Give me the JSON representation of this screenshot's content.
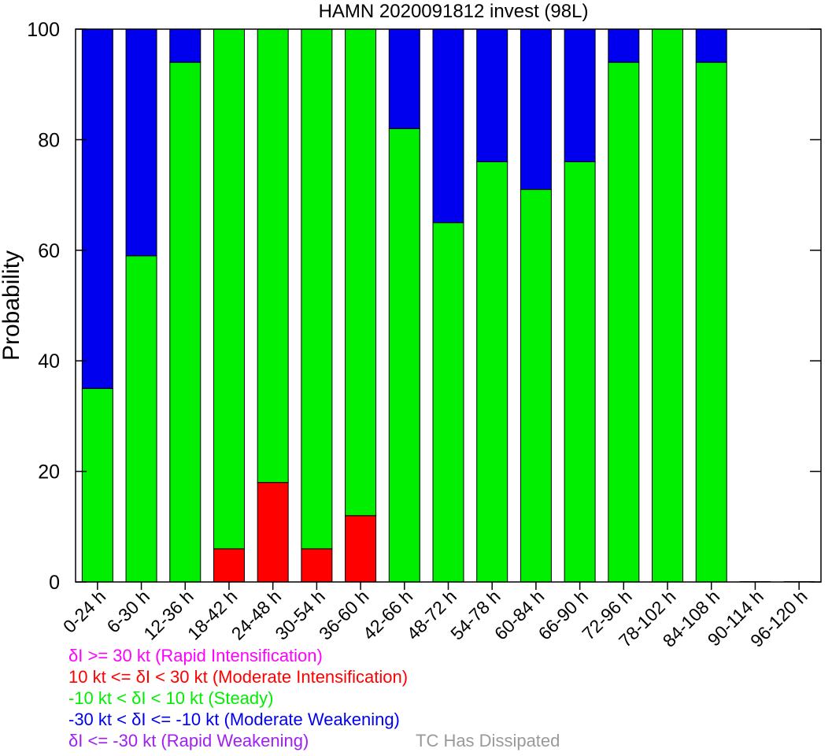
{
  "chart_data": {
    "type": "bar",
    "stacked": true,
    "title": "HAMN 2020091812 invest (98L)",
    "xlabel": "",
    "ylabel": "Probability",
    "ylim": [
      0,
      100
    ],
    "yticks": [
      "0",
      "20",
      "40",
      "60",
      "80",
      "100"
    ],
    "grid": false,
    "categories": [
      "0-24 h",
      "6-30 h",
      "12-36 h",
      "18-42 h",
      "24-48 h",
      "30-54 h",
      "36-60 h",
      "42-66 h",
      "48-72 h",
      "54-78 h",
      "60-84 h",
      "66-90 h",
      "72-96 h",
      "78-102 h",
      "84-108 h",
      "90-114 h",
      "96-120 h"
    ],
    "series": [
      {
        "name": "δI <= -30 kt (Rapid Weakening)",
        "color": "#a020f0",
        "values": [
          0,
          0,
          0,
          0,
          0,
          0,
          0,
          0,
          0,
          0,
          0,
          0,
          0,
          0,
          0,
          0,
          0
        ]
      },
      {
        "name": "10 kt <= δI < 30 kt (Moderate Intensification)",
        "color": "#ff0000",
        "values": [
          0,
          0,
          0,
          6,
          18,
          6,
          12,
          0,
          0,
          0,
          0,
          0,
          0,
          0,
          0,
          0,
          0
        ]
      },
      {
        "name": "-10 kt < δI < 10 kt (Steady)",
        "color": "#00ee00",
        "values": [
          35,
          59,
          94,
          94,
          82,
          94,
          88,
          82,
          65,
          76,
          71,
          76,
          94,
          100,
          94,
          0,
          0
        ]
      },
      {
        "name": "-30 kt < δI <= -10 kt (Moderate Weakening)",
        "color": "#0000ee",
        "values": [
          65,
          41,
          6,
          0,
          0,
          0,
          0,
          18,
          35,
          24,
          29,
          24,
          6,
          0,
          6,
          0,
          0
        ]
      },
      {
        "name": "δI >= 30 kt (Rapid Intensification)",
        "color": "#ff00ff",
        "values": [
          0,
          0,
          0,
          0,
          0,
          0,
          0,
          0,
          0,
          0,
          0,
          0,
          0,
          0,
          0,
          0,
          0
        ]
      }
    ],
    "legend": {
      "placement": "bottom-left",
      "entries": [
        {
          "text": "δI >= 30 kt (Rapid Intensification)",
          "color": "#ff00ff"
        },
        {
          "text": "10 kt <= δI < 30 kt (Moderate Intensification)",
          "color": "#ff0000"
        },
        {
          "text": "-10 kt < δI < 10 kt (Steady)",
          "color": "#00ee00"
        },
        {
          "text": "-30 kt < δI <= -10 kt (Moderate Weakening)",
          "color": "#0000ee"
        },
        {
          "text": "δI <= -30 kt (Rapid Weakening)",
          "color": "#a020f0"
        }
      ],
      "dissipated_text": "TC Has Dissipated",
      "dissipated_color": "#999999"
    }
  }
}
